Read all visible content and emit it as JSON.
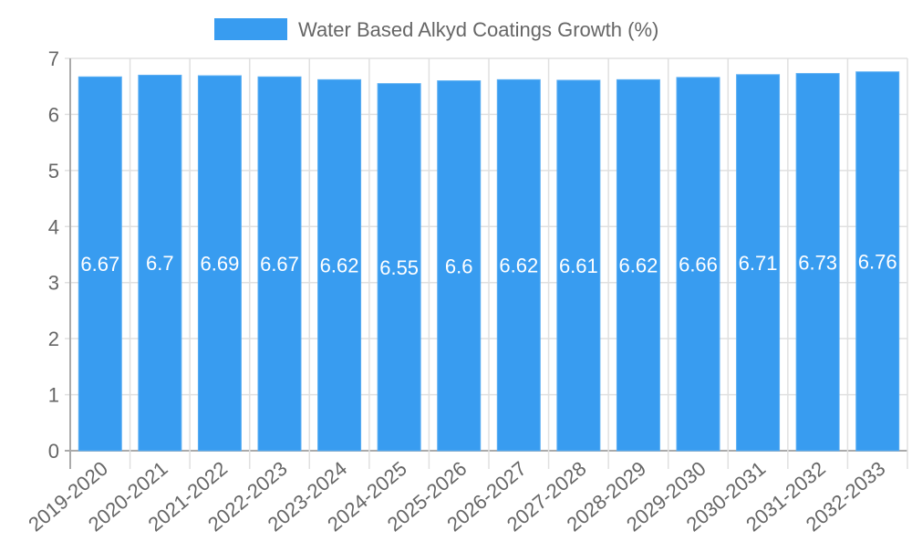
{
  "chart_data": {
    "type": "bar",
    "title": "",
    "xlabel": "",
    "ylabel": "",
    "ylim": [
      0,
      7
    ],
    "yticks": [
      0,
      1,
      2,
      3,
      4,
      5,
      6,
      7
    ],
    "grid": true,
    "legend_placement": "top-center",
    "categories": [
      "2019-2020",
      "2020-2021",
      "2021-2022",
      "2022-2023",
      "2023-2024",
      "2024-2025",
      "2025-2026",
      "2026-2027",
      "2027-2028",
      "2028-2029",
      "2029-2030",
      "2030-2031",
      "2031-2032",
      "2032-2033"
    ],
    "series": [
      {
        "name": "Water Based Alkyd Coatings Growth (%)",
        "color": "#389cf0",
        "values": [
          6.67,
          6.7,
          6.69,
          6.67,
          6.62,
          6.55,
          6.6,
          6.62,
          6.61,
          6.62,
          6.66,
          6.71,
          6.73,
          6.76
        ]
      }
    ]
  }
}
